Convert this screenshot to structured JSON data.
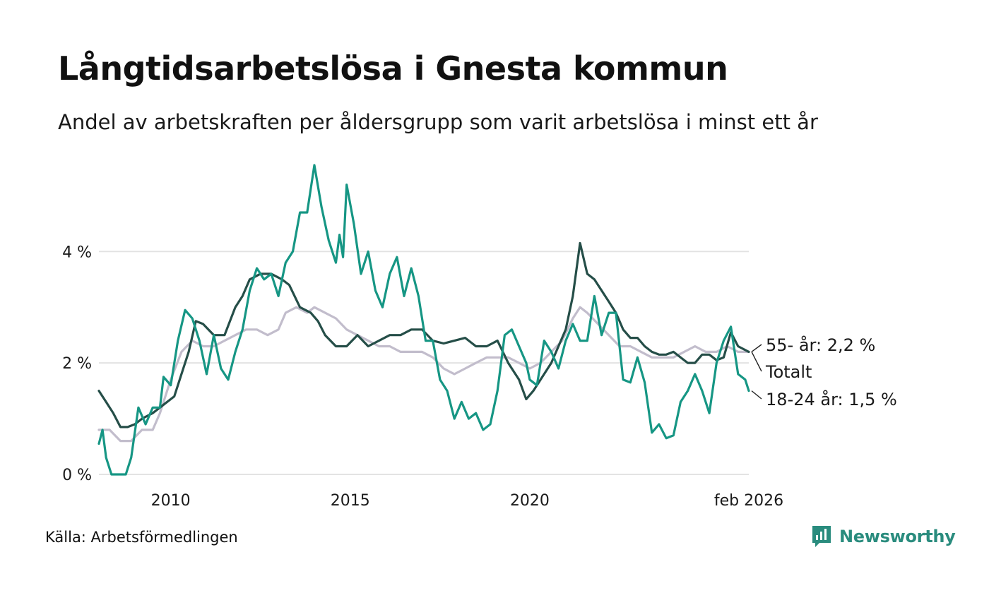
{
  "header": {
    "title": "Långtidsarbetslösa i Gnesta kommun",
    "subtitle": "Andel av arbetskraften per åldersgrupp som varit arbetslösa i minst ett år"
  },
  "footer": {
    "source": "Källa: Arbetsförmedlingen",
    "brand": "Newsworthy"
  },
  "colors": {
    "youth": "#169684",
    "total": "#254e48",
    "older": "#c2bdcc",
    "grid": "#e3e3e3"
  },
  "chart_data": {
    "type": "line",
    "title": "Långtidsarbetslösa i Gnesta kommun",
    "xlabel": "",
    "ylabel": "",
    "x_range": [
      2008.0,
      2026.1
    ],
    "ylim": [
      0,
      5.6
    ],
    "y_ticks": [
      0,
      2,
      4
    ],
    "y_tick_labels": [
      "0 %",
      "2 %",
      "4 %"
    ],
    "x_ticks": [
      2010,
      2015,
      2020,
      2026.1
    ],
    "x_tick_labels": [
      "2010",
      "2015",
      "2020",
      "feb 2026"
    ],
    "series": [
      {
        "name": "55- år",
        "key": "older",
        "end_label": "55- år: 2,2 %",
        "points": [
          [
            2008.0,
            0.8
          ],
          [
            2008.3,
            0.8
          ],
          [
            2008.6,
            0.6
          ],
          [
            2008.9,
            0.6
          ],
          [
            2009.2,
            0.8
          ],
          [
            2009.5,
            0.8
          ],
          [
            2009.7,
            1.1
          ],
          [
            2010.0,
            1.7
          ],
          [
            2010.3,
            2.2
          ],
          [
            2010.6,
            2.4
          ],
          [
            2010.9,
            2.3
          ],
          [
            2011.2,
            2.3
          ],
          [
            2011.5,
            2.4
          ],
          [
            2011.8,
            2.5
          ],
          [
            2012.1,
            2.6
          ],
          [
            2012.4,
            2.6
          ],
          [
            2012.7,
            2.5
          ],
          [
            2013.0,
            2.6
          ],
          [
            2013.2,
            2.9
          ],
          [
            2013.5,
            3.0
          ],
          [
            2013.8,
            2.9
          ],
          [
            2014.0,
            3.0
          ],
          [
            2014.3,
            2.9
          ],
          [
            2014.6,
            2.8
          ],
          [
            2014.9,
            2.6
          ],
          [
            2015.2,
            2.5
          ],
          [
            2015.5,
            2.4
          ],
          [
            2015.8,
            2.3
          ],
          [
            2016.1,
            2.3
          ],
          [
            2016.4,
            2.2
          ],
          [
            2016.7,
            2.2
          ],
          [
            2017.0,
            2.2
          ],
          [
            2017.3,
            2.1
          ],
          [
            2017.6,
            1.9
          ],
          [
            2017.9,
            1.8
          ],
          [
            2018.2,
            1.9
          ],
          [
            2018.5,
            2.0
          ],
          [
            2018.8,
            2.1
          ],
          [
            2019.1,
            2.1
          ],
          [
            2019.4,
            2.1
          ],
          [
            2019.7,
            2.0
          ],
          [
            2020.0,
            1.9
          ],
          [
            2020.3,
            2.0
          ],
          [
            2020.6,
            2.2
          ],
          [
            2020.9,
            2.4
          ],
          [
            2021.2,
            2.8
          ],
          [
            2021.4,
            3.0
          ],
          [
            2021.6,
            2.9
          ],
          [
            2021.9,
            2.7
          ],
          [
            2022.2,
            2.5
          ],
          [
            2022.5,
            2.3
          ],
          [
            2022.8,
            2.3
          ],
          [
            2023.1,
            2.2
          ],
          [
            2023.4,
            2.1
          ],
          [
            2023.7,
            2.1
          ],
          [
            2024.0,
            2.1
          ],
          [
            2024.3,
            2.2
          ],
          [
            2024.6,
            2.3
          ],
          [
            2024.9,
            2.2
          ],
          [
            2025.2,
            2.2
          ],
          [
            2025.5,
            2.3
          ],
          [
            2025.8,
            2.2
          ],
          [
            2026.1,
            2.2
          ]
        ]
      },
      {
        "name": "Totalt",
        "key": "total",
        "end_label": "Totalt",
        "points": [
          [
            2008.0,
            1.5
          ],
          [
            2008.2,
            1.3
          ],
          [
            2008.4,
            1.1
          ],
          [
            2008.6,
            0.85
          ],
          [
            2008.8,
            0.85
          ],
          [
            2009.0,
            0.9
          ],
          [
            2009.2,
            1.0
          ],
          [
            2009.5,
            1.1
          ],
          [
            2009.8,
            1.25
          ],
          [
            2010.1,
            1.4
          ],
          [
            2010.3,
            1.8
          ],
          [
            2010.5,
            2.2
          ],
          [
            2010.7,
            2.75
          ],
          [
            2010.9,
            2.7
          ],
          [
            2011.2,
            2.5
          ],
          [
            2011.5,
            2.5
          ],
          [
            2011.8,
            3.0
          ],
          [
            2012.0,
            3.2
          ],
          [
            2012.2,
            3.5
          ],
          [
            2012.5,
            3.6
          ],
          [
            2012.8,
            3.6
          ],
          [
            2013.1,
            3.5
          ],
          [
            2013.3,
            3.4
          ],
          [
            2013.6,
            3.0
          ],
          [
            2013.9,
            2.9
          ],
          [
            2014.1,
            2.75
          ],
          [
            2014.3,
            2.5
          ],
          [
            2014.6,
            2.3
          ],
          [
            2014.9,
            2.3
          ],
          [
            2015.2,
            2.5
          ],
          [
            2015.5,
            2.3
          ],
          [
            2015.8,
            2.4
          ],
          [
            2016.1,
            2.5
          ],
          [
            2016.4,
            2.5
          ],
          [
            2016.7,
            2.6
          ],
          [
            2017.0,
            2.6
          ],
          [
            2017.3,
            2.4
          ],
          [
            2017.6,
            2.35
          ],
          [
            2017.9,
            2.4
          ],
          [
            2018.2,
            2.45
          ],
          [
            2018.5,
            2.3
          ],
          [
            2018.8,
            2.3
          ],
          [
            2019.1,
            2.4
          ],
          [
            2019.4,
            2.0
          ],
          [
            2019.7,
            1.7
          ],
          [
            2019.9,
            1.35
          ],
          [
            2020.1,
            1.5
          ],
          [
            2020.3,
            1.7
          ],
          [
            2020.6,
            2.0
          ],
          [
            2020.8,
            2.3
          ],
          [
            2021.0,
            2.6
          ],
          [
            2021.2,
            3.2
          ],
          [
            2021.4,
            4.15
          ],
          [
            2021.6,
            3.6
          ],
          [
            2021.8,
            3.5
          ],
          [
            2022.0,
            3.3
          ],
          [
            2022.2,
            3.1
          ],
          [
            2022.4,
            2.9
          ],
          [
            2022.6,
            2.6
          ],
          [
            2022.8,
            2.45
          ],
          [
            2023.0,
            2.45
          ],
          [
            2023.2,
            2.3
          ],
          [
            2023.4,
            2.2
          ],
          [
            2023.6,
            2.15
          ],
          [
            2023.8,
            2.15
          ],
          [
            2024.0,
            2.2
          ],
          [
            2024.2,
            2.1
          ],
          [
            2024.4,
            2.0
          ],
          [
            2024.6,
            2.0
          ],
          [
            2024.8,
            2.15
          ],
          [
            2025.0,
            2.15
          ],
          [
            2025.2,
            2.05
          ],
          [
            2025.4,
            2.1
          ],
          [
            2025.6,
            2.55
          ],
          [
            2025.8,
            2.3
          ],
          [
            2026.1,
            2.2
          ]
        ]
      },
      {
        "name": "18-24 år",
        "key": "youth",
        "end_label": "18-24 år: 1,5 %",
        "points": [
          [
            2008.0,
            0.55
          ],
          [
            2008.1,
            0.8
          ],
          [
            2008.2,
            0.3
          ],
          [
            2008.35,
            0.0
          ],
          [
            2008.6,
            0.0
          ],
          [
            2008.75,
            0.0
          ],
          [
            2008.9,
            0.3
          ],
          [
            2009.1,
            1.2
          ],
          [
            2009.3,
            0.9
          ],
          [
            2009.5,
            1.2
          ],
          [
            2009.7,
            1.2
          ],
          [
            2009.8,
            1.75
          ],
          [
            2010.0,
            1.6
          ],
          [
            2010.2,
            2.4
          ],
          [
            2010.4,
            2.95
          ],
          [
            2010.6,
            2.8
          ],
          [
            2010.8,
            2.4
          ],
          [
            2011.0,
            1.8
          ],
          [
            2011.2,
            2.5
          ],
          [
            2011.4,
            1.9
          ],
          [
            2011.6,
            1.7
          ],
          [
            2011.8,
            2.2
          ],
          [
            2012.0,
            2.6
          ],
          [
            2012.2,
            3.3
          ],
          [
            2012.4,
            3.7
          ],
          [
            2012.6,
            3.5
          ],
          [
            2012.8,
            3.6
          ],
          [
            2013.0,
            3.2
          ],
          [
            2013.2,
            3.8
          ],
          [
            2013.4,
            4.0
          ],
          [
            2013.6,
            4.7
          ],
          [
            2013.8,
            4.7
          ],
          [
            2014.0,
            5.55
          ],
          [
            2014.2,
            4.8
          ],
          [
            2014.4,
            4.2
          ],
          [
            2014.6,
            3.8
          ],
          [
            2014.7,
            4.3
          ],
          [
            2014.8,
            3.9
          ],
          [
            2014.9,
            5.2
          ],
          [
            2015.1,
            4.5
          ],
          [
            2015.3,
            3.6
          ],
          [
            2015.5,
            4.0
          ],
          [
            2015.7,
            3.3
          ],
          [
            2015.9,
            3.0
          ],
          [
            2016.1,
            3.6
          ],
          [
            2016.3,
            3.9
          ],
          [
            2016.5,
            3.2
          ],
          [
            2016.7,
            3.7
          ],
          [
            2016.9,
            3.2
          ],
          [
            2017.1,
            2.4
          ],
          [
            2017.3,
            2.4
          ],
          [
            2017.5,
            1.7
          ],
          [
            2017.7,
            1.5
          ],
          [
            2017.9,
            1.0
          ],
          [
            2018.1,
            1.3
          ],
          [
            2018.3,
            1.0
          ],
          [
            2018.5,
            1.1
          ],
          [
            2018.7,
            0.8
          ],
          [
            2018.9,
            0.9
          ],
          [
            2019.1,
            1.5
          ],
          [
            2019.3,
            2.5
          ],
          [
            2019.5,
            2.6
          ],
          [
            2019.7,
            2.3
          ],
          [
            2019.9,
            2.0
          ],
          [
            2020.0,
            1.7
          ],
          [
            2020.2,
            1.6
          ],
          [
            2020.4,
            2.4
          ],
          [
            2020.6,
            2.2
          ],
          [
            2020.8,
            1.9
          ],
          [
            2021.0,
            2.4
          ],
          [
            2021.2,
            2.7
          ],
          [
            2021.4,
            2.4
          ],
          [
            2021.6,
            2.4
          ],
          [
            2021.8,
            3.2
          ],
          [
            2022.0,
            2.5
          ],
          [
            2022.2,
            2.9
          ],
          [
            2022.4,
            2.9
          ],
          [
            2022.6,
            1.7
          ],
          [
            2022.8,
            1.65
          ],
          [
            2023.0,
            2.1
          ],
          [
            2023.2,
            1.65
          ],
          [
            2023.4,
            0.75
          ],
          [
            2023.6,
            0.9
          ],
          [
            2023.8,
            0.65
          ],
          [
            2024.0,
            0.7
          ],
          [
            2024.2,
            1.3
          ],
          [
            2024.4,
            1.5
          ],
          [
            2024.6,
            1.8
          ],
          [
            2024.8,
            1.5
          ],
          [
            2025.0,
            1.1
          ],
          [
            2025.2,
            2.0
          ],
          [
            2025.4,
            2.4
          ],
          [
            2025.6,
            2.65
          ],
          [
            2025.8,
            1.8
          ],
          [
            2026.0,
            1.7
          ],
          [
            2026.1,
            1.5
          ]
        ]
      }
    ]
  }
}
